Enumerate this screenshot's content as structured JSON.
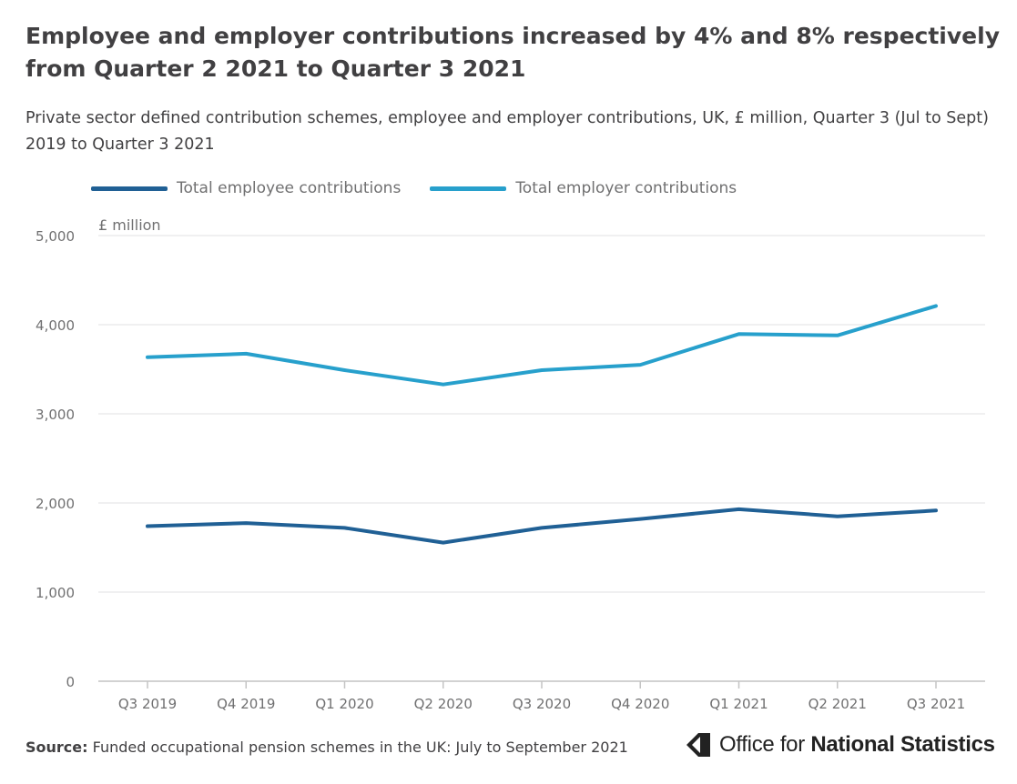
{
  "title": "Employee and employer contributions increased by 4% and 8% respectively from Quarter 2 2021 to Quarter 3 2021",
  "subtitle": "Private sector defined contribution schemes, employee and employer contributions, UK, £ million, Quarter 3 (Jul to Sept) 2019 to Quarter 3 2021",
  "footer": {
    "source_label": "Source:",
    "source_text": "Funded occupational pension schemes in the UK: July to September 2021"
  },
  "logo": {
    "text_regular": "Office for",
    "text_bold": "National Statistics"
  },
  "chart_data": {
    "type": "line",
    "title": "Employee and employer contributions increased by 4% and 8% respectively from Quarter 2 2021 to Quarter 3 2021",
    "ylabel": "£ million",
    "xlabel": "",
    "categories": [
      "Q3 2019",
      "Q4 2019",
      "Q1 2020",
      "Q2 2020",
      "Q3 2020",
      "Q4 2020",
      "Q1 2021",
      "Q2 2021",
      "Q3 2021"
    ],
    "ylim": [
      0,
      5000
    ],
    "yticks": [
      0,
      1000,
      2000,
      3000,
      4000,
      5000
    ],
    "ytick_labels": [
      "0",
      "1,000",
      "2,000",
      "3,000",
      "4,000",
      "5,000"
    ],
    "grid": true,
    "legend_position": "top-left",
    "series": [
      {
        "name": "Total employee contributions",
        "color": "#206095",
        "values": [
          1740,
          1775,
          1720,
          1555,
          1720,
          1820,
          1930,
          1850,
          1915
        ]
      },
      {
        "name": "Total employer contributions",
        "color": "#27a0cc",
        "values": [
          3635,
          3675,
          3490,
          3330,
          3490,
          3550,
          3895,
          3880,
          4210
        ]
      }
    ]
  }
}
